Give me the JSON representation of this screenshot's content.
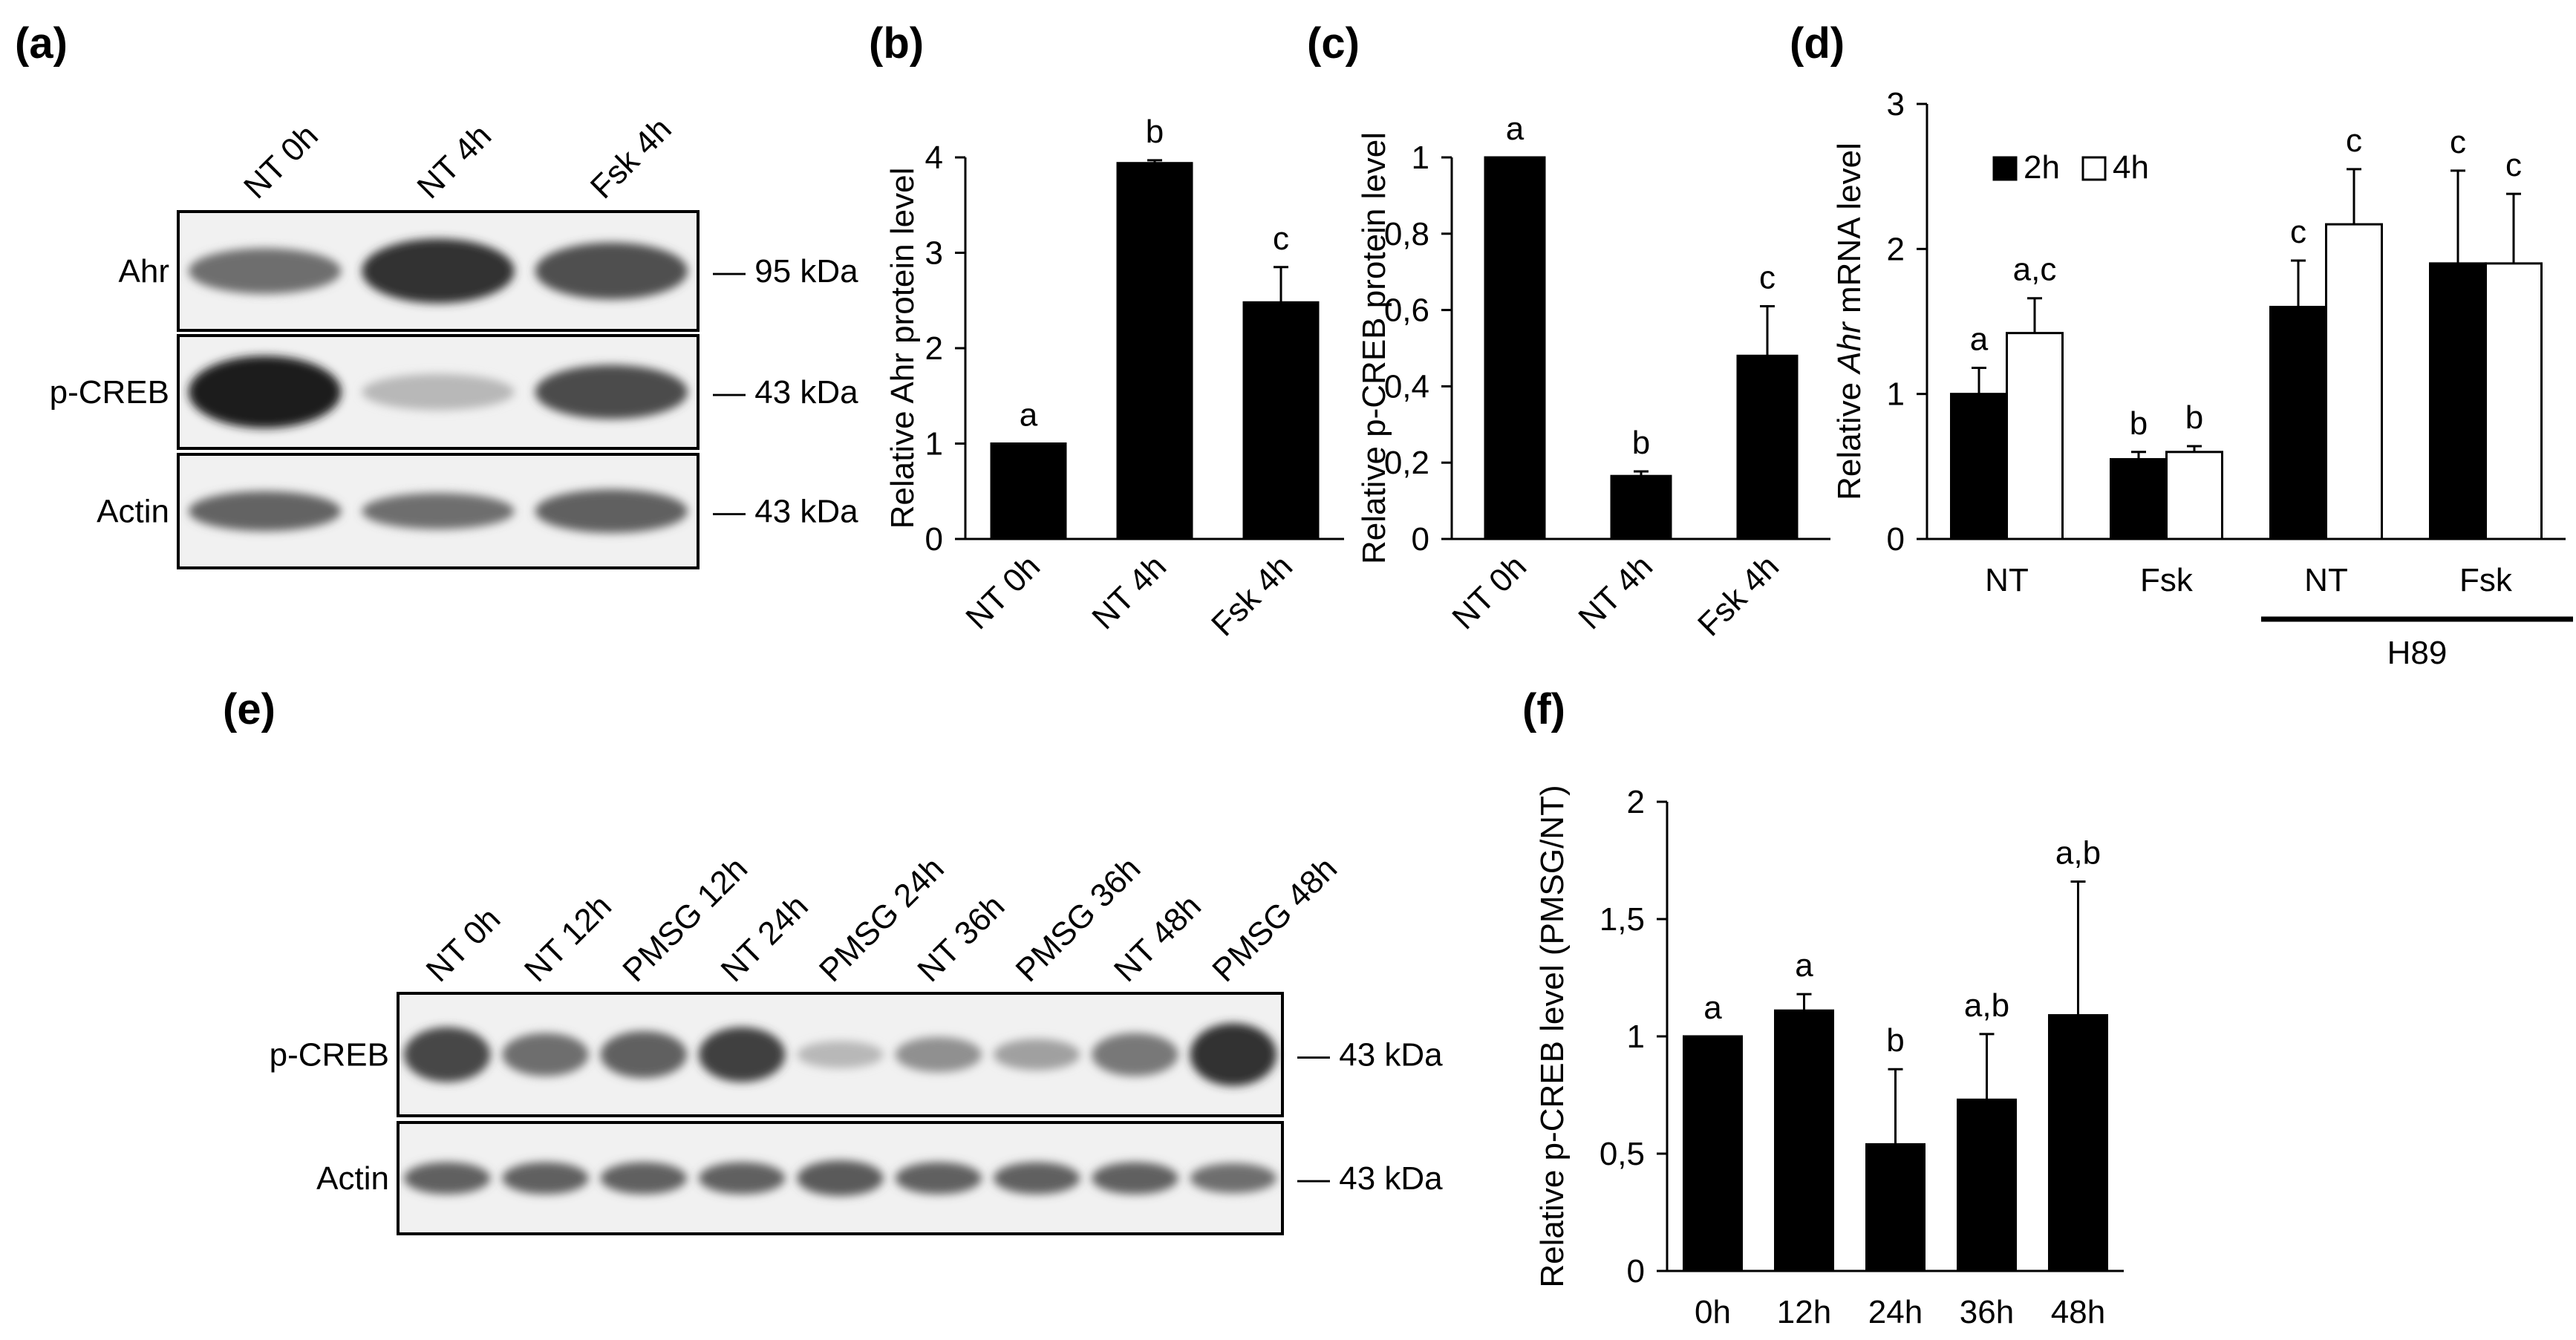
{
  "panels": {
    "a": {
      "label": "(a)",
      "lanes": [
        "NT 0h",
        "NT 4h",
        "Fsk 4h"
      ],
      "blots": [
        {
          "name": "Ahr",
          "kda": "— 95 kDa",
          "intensity": [
            0.55,
            0.85,
            0.7
          ],
          "thickness": [
            0.6,
            0.85,
            0.75
          ]
        },
        {
          "name": "p-CREB",
          "kda": "— 43 kDa",
          "intensity": [
            0.95,
            0.18,
            0.72
          ],
          "thickness": [
            1.0,
            0.5,
            0.75
          ]
        },
        {
          "name": "Actin",
          "kda": "— 43 kDa",
          "intensity": [
            0.6,
            0.55,
            0.62
          ],
          "thickness": [
            0.55,
            0.5,
            0.6
          ]
        }
      ]
    },
    "e": {
      "label": "(e)",
      "lanes": [
        "NT 0h",
        "NT 12h",
        "PMSG 12h",
        "NT 24h",
        "PMSG 24h",
        "NT 36h",
        "PMSG 36h",
        "NT 48h",
        "PMSG 48h"
      ],
      "blots": [
        {
          "name": "p-CREB",
          "kda": "— 43 kDa",
          "intensity": [
            0.75,
            0.55,
            0.62,
            0.78,
            0.18,
            0.38,
            0.3,
            0.5,
            0.85
          ],
          "thickness": [
            0.7,
            0.55,
            0.6,
            0.7,
            0.35,
            0.45,
            0.4,
            0.55,
            0.8
          ]
        },
        {
          "name": "Actin",
          "kda": "— 43 kDa",
          "intensity": [
            0.62,
            0.62,
            0.62,
            0.62,
            0.65,
            0.62,
            0.62,
            0.62,
            0.55
          ],
          "thickness": [
            0.45,
            0.45,
            0.45,
            0.45,
            0.5,
            0.45,
            0.45,
            0.45,
            0.42
          ]
        }
      ]
    }
  },
  "chart_data": [
    {
      "id": "b",
      "panel_label": "(b)",
      "type": "bar",
      "categories": [
        "NT 0h",
        "NT 4h",
        "Fsk 4h"
      ],
      "values": [
        1.0,
        3.94,
        2.48
      ],
      "errors": [
        0,
        0.03,
        0.37
      ],
      "letters": [
        "a",
        "b",
        "c"
      ],
      "ylabel": "Relative Ahr protein level",
      "ylim": [
        0,
        4
      ],
      "ytick_values": [
        0,
        1,
        2,
        3,
        4
      ],
      "ytick_labels": [
        "0",
        "1",
        "2",
        "3",
        "4"
      ]
    },
    {
      "id": "c",
      "panel_label": "(c)",
      "type": "bar",
      "categories": [
        "NT 0h",
        "NT 4h",
        "Fsk 4h"
      ],
      "values": [
        1.0,
        0.165,
        0.48
      ],
      "errors": [
        0,
        0.012,
        0.13
      ],
      "letters": [
        "a",
        "b",
        "c"
      ],
      "ylabel": "Relative p-CREB protein level",
      "ylim": [
        0,
        1
      ],
      "ytick_values": [
        0,
        0.2,
        0.4,
        0.6,
        0.8,
        1
      ],
      "ytick_labels": [
        "0",
        "0,2",
        "0,4",
        "0,6",
        "0,8",
        "1"
      ]
    },
    {
      "id": "d",
      "panel_label": "(d)",
      "type": "bar",
      "categories": [
        "NT",
        "Fsk",
        "NT",
        "Fsk"
      ],
      "group_label": "H89",
      "series": [
        {
          "name": "2h",
          "color": "#000000",
          "values": [
            1.0,
            0.55,
            1.6,
            1.9
          ],
          "errors": [
            0.18,
            0.05,
            0.32,
            0.64
          ],
          "letters": [
            "a",
            "b",
            "c",
            "c"
          ]
        },
        {
          "name": "4h",
          "color": "#ffffff",
          "values": [
            1.42,
            0.6,
            2.17,
            1.9
          ],
          "errors": [
            0.24,
            0.04,
            0.38,
            0.48
          ],
          "letters": [
            "a,c",
            "b",
            "c",
            "c"
          ]
        }
      ],
      "ylabel_pre": "Relative ",
      "ylabel_italic": "Ahr",
      "ylabel_post": " mRNA level",
      "ylim": [
        0,
        3
      ],
      "ytick_values": [
        0,
        1,
        2,
        3
      ],
      "ytick_labels": [
        "0",
        "1",
        "2",
        "3"
      ]
    },
    {
      "id": "f",
      "panel_label": "(f)",
      "type": "bar",
      "categories": [
        "0h",
        "12h",
        "24h",
        "36h",
        "48h"
      ],
      "values": [
        1.0,
        1.11,
        0.54,
        0.73,
        1.09
      ],
      "errors": [
        0,
        0.07,
        0.32,
        0.28,
        0.57
      ],
      "letters": [
        "a",
        "a",
        "b",
        "a,b",
        "a,b"
      ],
      "ylabel": "Relative p-CREB level (PMSG/NT)",
      "ylim": [
        0,
        2
      ],
      "ytick_values": [
        0,
        0.5,
        1,
        1.5,
        2
      ],
      "ytick_labels": [
        "0",
        "0,5",
        "1",
        "1,5",
        "2"
      ]
    }
  ]
}
